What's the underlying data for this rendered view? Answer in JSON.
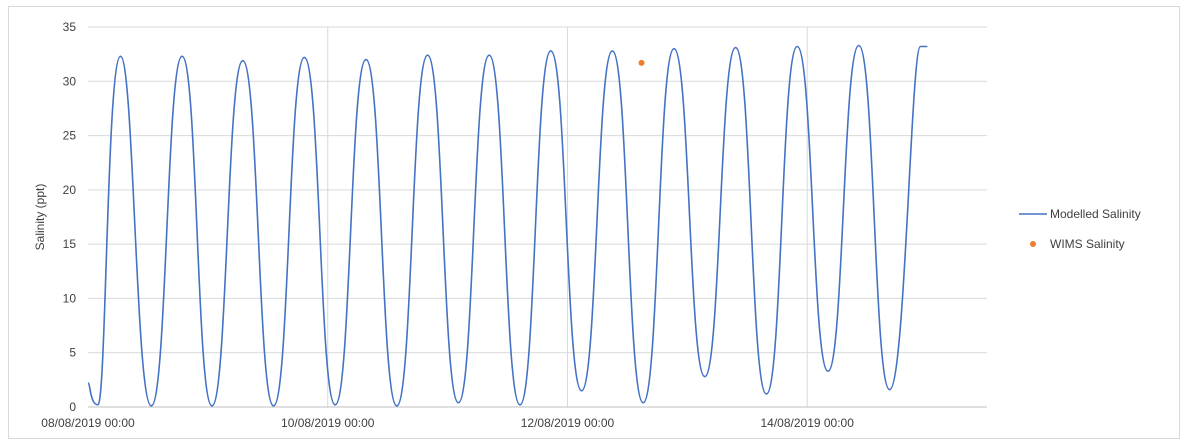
{
  "chart_data": {
    "type": "line",
    "title": "",
    "xlabel": "",
    "ylabel": "Salinity (ppt)",
    "x_start": "08/08/2019 00:00",
    "x_end": "15/08/2019 12:00",
    "x_ticks": [
      "08/08/2019 00:00",
      "10/08/2019 00:00",
      "12/08/2019 00:00",
      "14/08/2019 00:00"
    ],
    "ylim": [
      0,
      35
    ],
    "y_ticks": [
      "0",
      "5",
      "10",
      "15",
      "20",
      "25",
      "30",
      "35"
    ],
    "grid": true,
    "legend_position": "right",
    "series": [
      {
        "name": "Modelled Salinity",
        "color": "#4472c4",
        "style": "line",
        "points": [
          [
            "08/08/2019 00:00",
            2.2
          ],
          [
            "08/08/2019 02:00",
            0.2
          ],
          [
            "08/08/2019 06:30",
            32.3
          ],
          [
            "08/08/2019 12:40",
            0.1
          ],
          [
            "08/08/2019 18:50",
            32.3
          ],
          [
            "09/08/2019 00:50",
            0.1
          ],
          [
            "09/08/2019 07:00",
            31.9
          ],
          [
            "09/08/2019 13:10",
            0.1
          ],
          [
            "09/08/2019 19:20",
            32.2
          ],
          [
            "10/08/2019 01:30",
            0.2
          ],
          [
            "10/08/2019 07:40",
            32.0
          ],
          [
            "10/08/2019 13:50",
            0.1
          ],
          [
            "10/08/2019 20:00",
            32.4
          ],
          [
            "11/08/2019 02:10",
            0.4
          ],
          [
            "11/08/2019 08:20",
            32.4
          ],
          [
            "11/08/2019 14:30",
            0.2
          ],
          [
            "11/08/2019 20:40",
            32.8
          ],
          [
            "12/08/2019 02:50",
            1.5
          ],
          [
            "12/08/2019 09:00",
            32.8
          ],
          [
            "12/08/2019 15:10",
            0.4
          ],
          [
            "12/08/2019 21:20",
            33.0
          ],
          [
            "13/08/2019 03:30",
            2.8
          ],
          [
            "13/08/2019 09:40",
            33.1
          ],
          [
            "13/08/2019 15:50",
            1.2
          ],
          [
            "13/08/2019 22:00",
            33.2
          ],
          [
            "14/08/2019 04:10",
            3.3
          ],
          [
            "14/08/2019 10:20",
            33.3
          ],
          [
            "14/08/2019 16:30",
            1.6
          ],
          [
            "14/08/2019 22:40",
            33.2
          ],
          [
            "15/08/2019 00:00",
            33.2
          ]
        ]
      },
      {
        "name": "WIMS Salinity",
        "color": "#ed7d31",
        "style": "marker",
        "points": [
          [
            "12/08/2019 14:50",
            31.7
          ]
        ]
      }
    ]
  }
}
